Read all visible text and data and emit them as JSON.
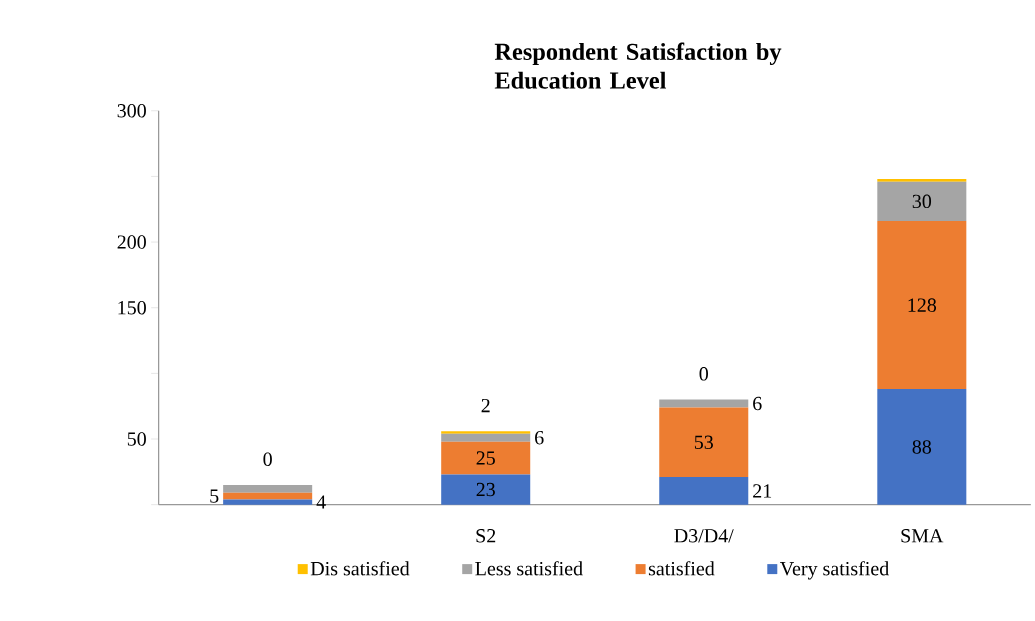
{
  "chart_data": {
    "type": "bar",
    "stacked": true,
    "title": "Respondent Satisfaction by Education Level",
    "categories": [
      null,
      "S2",
      "D3/D4/",
      "SMA"
    ],
    "series": [
      {
        "name": "Very satisfied",
        "color": "#4472c4",
        "values": [
          4,
          23,
          21,
          88
        ],
        "value_labels": [
          "4",
          "23",
          "21",
          "88"
        ]
      },
      {
        "name": "satisfied",
        "color": "#ed7d31",
        "values": [
          5,
          25,
          53,
          128
        ],
        "value_labels": [
          "5",
          "25",
          "53",
          "128"
        ]
      },
      {
        "name": "Less satisfied",
        "color": "#a5a5a5",
        "values": [
          6,
          6,
          6,
          30
        ],
        "value_labels": [
          null,
          "6",
          "6",
          "30"
        ]
      },
      {
        "name": "Dis satisfied",
        "color": "#ffc000",
        "values": [
          0,
          2,
          0,
          2
        ],
        "value_labels": [
          "0",
          "2",
          "0",
          null
        ]
      }
    ],
    "ylim": [
      0,
      300
    ],
    "yticks": [
      {
        "value": 0,
        "label": null
      },
      50,
      {
        "value": 100,
        "label": null
      },
      150,
      200,
      {
        "value": 250,
        "label": null
      },
      300
    ],
    "legend": "bottom"
  }
}
